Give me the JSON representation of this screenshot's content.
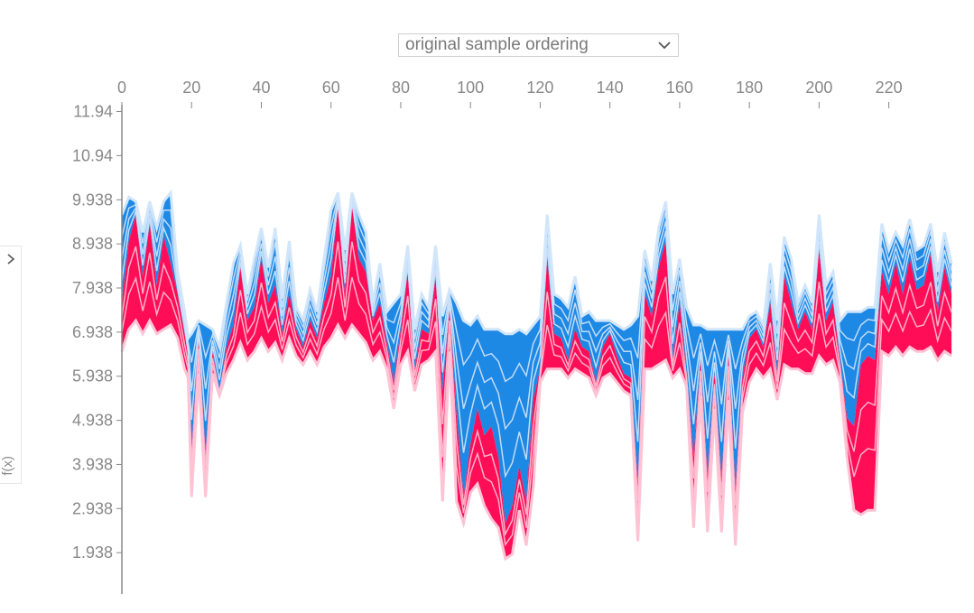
{
  "controls": {
    "ordering_value": "original sample ordering",
    "ordering_icon": "chevron-down-icon",
    "side_toggle_icon": "chevron-right-icon",
    "side_label": "f(x)"
  },
  "colors": {
    "positive": "#ff0d57",
    "negative": "#1e88e5",
    "positive_edge": "#ffc3d5",
    "negative_edge": "#d1e6fa",
    "axis": "#888888"
  },
  "chart_data": {
    "type": "area",
    "title": "",
    "xlabel": "",
    "ylabel": "f(x)",
    "xlim": [
      0,
      239
    ],
    "ylim": [
      1.0,
      12.4
    ],
    "x_ticks": [
      0,
      20,
      40,
      60,
      80,
      100,
      120,
      140,
      160,
      180,
      200,
      220
    ],
    "y_ticks": [
      1.938,
      2.938,
      3.938,
      4.938,
      5.938,
      6.938,
      7.938,
      8.938,
      9.938,
      10.94,
      11.94
    ],
    "y_tick_labels": [
      "1.938",
      "2.938",
      "3.938",
      "4.938",
      "5.938",
      "6.938",
      "7.938",
      "8.938",
      "9.938",
      "10.94",
      "11.94"
    ],
    "grid": false,
    "legend": "none",
    "samples": {
      "x": [
        0,
        2,
        4,
        6,
        8,
        10,
        12,
        14,
        16,
        18,
        19,
        20,
        22,
        24,
        26,
        28,
        30,
        32,
        34,
        36,
        38,
        40,
        42,
        44,
        46,
        48,
        50,
        52,
        54,
        56,
        58,
        60,
        62,
        64,
        66,
        68,
        70,
        72,
        74,
        76,
        78,
        80,
        82,
        84,
        86,
        88,
        90,
        92,
        94,
        96,
        98,
        100,
        102,
        104,
        106,
        108,
        110,
        112,
        114,
        116,
        118,
        120,
        122,
        124,
        126,
        128,
        130,
        132,
        134,
        136,
        138,
        140,
        142,
        144,
        146,
        148,
        150,
        152,
        154,
        156,
        158,
        160,
        162,
        164,
        166,
        168,
        170,
        172,
        174,
        176,
        178,
        180,
        182,
        184,
        186,
        188,
        190,
        192,
        194,
        196,
        198,
        200,
        202,
        204,
        206,
        208,
        210,
        212,
        214,
        216,
        218,
        220,
        222,
        224,
        226,
        228,
        230,
        232,
        234,
        236,
        238
      ],
      "f": [
        7.6,
        9.0,
        9.6,
        8.2,
        9.4,
        8.0,
        9.1,
        8.5,
        7.8,
        6.9,
        6.4,
        4.3,
        6.8,
        4.2,
        6.5,
        5.6,
        6.6,
        7.1,
        8.4,
        7.2,
        7.5,
        8.6,
        7.6,
        8.0,
        6.9,
        7.8,
        7.0,
        6.6,
        7.2,
        6.8,
        7.6,
        8.2,
        9.8,
        7.8,
        9.8,
        8.6,
        8.3,
        7.2,
        7.6,
        6.7,
        5.8,
        7.0,
        8.3,
        6.1,
        7.0,
        6.9,
        8.2,
        5.6,
        7.5,
        5.1,
        3.2,
        4.4,
        5.2,
        4.6,
        4.8,
        4.1,
        2.6,
        3.0,
        3.9,
        3.1,
        5.4,
        6.1,
        8.6,
        6.9,
        6.8,
        6.3,
        7.0,
        6.6,
        6.5,
        5.8,
        6.6,
        6.9,
        6.4,
        6.0,
        5.9,
        3.5,
        7.8,
        7.3,
        8.4,
        9.0,
        6.3,
        7.6,
        6.0,
        4.1,
        6.3,
        3.7,
        6.0,
        3.6,
        6.5,
        3.4,
        5.9,
        6.8,
        7.0,
        6.6,
        7.6,
        6.0,
        8.2,
        7.6,
        7.0,
        7.4,
        7.0,
        8.8,
        7.2,
        7.6,
        6.3,
        5.0,
        4.8,
        6.2,
        6.4,
        6.3,
        8.3,
        7.8,
        8.5,
        7.8,
        8.6,
        7.9,
        8.0,
        8.7,
        7.4,
        8.4,
        7.8
      ],
      "upper": [
        9.6,
        10.0,
        9.9,
        9.2,
        9.9,
        9.3,
        9.9,
        10.1,
        8.3,
        7.4,
        6.8,
        6.9,
        7.2,
        7.1,
        7.0,
        6.6,
        7.6,
        8.5,
        8.9,
        7.8,
        8.6,
        9.3,
        8.4,
        9.3,
        7.7,
        9.0,
        7.5,
        7.2,
        7.9,
        7.4,
        8.6,
        9.7,
        10.1,
        8.8,
        10.1,
        9.6,
        9.2,
        7.6,
        8.5,
        7.4,
        7.6,
        7.8,
        8.9,
        7.0,
        7.8,
        7.5,
        8.9,
        7.3,
        7.9,
        7.6,
        7.2,
        7.1,
        7.3,
        7.0,
        7.0,
        7.0,
        6.9,
        6.9,
        7.0,
        6.9,
        7.1,
        7.3,
        9.6,
        7.8,
        7.7,
        7.5,
        8.2,
        7.3,
        7.4,
        7.2,
        7.2,
        7.2,
        7.1,
        7.0,
        7.1,
        7.3,
        8.8,
        8.1,
        9.3,
        9.9,
        7.8,
        8.6,
        7.5,
        7.1,
        7.1,
        7.0,
        7.0,
        7.0,
        7.0,
        7.0,
        7.0,
        7.3,
        7.4,
        7.1,
        8.5,
        7.2,
        9.1,
        8.6,
        7.6,
        8.0,
        7.6,
        9.6,
        8.0,
        8.3,
        7.2,
        7.4,
        7.4,
        7.4,
        7.5,
        7.5,
        9.4,
        8.8,
        9.2,
        8.9,
        9.5,
        8.8,
        8.9,
        9.4,
        8.3,
        9.2,
        8.5
      ],
      "lower": [
        6.5,
        7.0,
        7.2,
        6.9,
        7.2,
        6.9,
        7.0,
        7.1,
        6.8,
        6.1,
        5.9,
        3.2,
        6.0,
        3.2,
        6.0,
        5.5,
        6.0,
        6.3,
        6.7,
        6.3,
        6.5,
        6.8,
        6.5,
        6.7,
        6.3,
        6.8,
        6.4,
        6.2,
        6.5,
        6.2,
        6.6,
        6.8,
        7.1,
        6.8,
        7.1,
        6.9,
        6.7,
        6.3,
        6.5,
        6.1,
        5.2,
        6.2,
        6.5,
        5.6,
        6.2,
        6.3,
        6.5,
        3.1,
        6.5,
        3.1,
        2.6,
        3.3,
        3.5,
        3.0,
        2.7,
        2.5,
        1.8,
        1.9,
        2.9,
        2.1,
        3.4,
        5.8,
        6.1,
        6.1,
        6.1,
        5.9,
        6.1,
        6.0,
        5.9,
        5.5,
        5.9,
        6.0,
        5.8,
        5.6,
        5.5,
        2.2,
        6.1,
        6.1,
        6.2,
        6.3,
        5.9,
        6.1,
        5.7,
        2.5,
        5.5,
        2.4,
        5.2,
        2.4,
        5.4,
        2.1,
        5.1,
        5.8,
        6.1,
        5.9,
        6.1,
        5.4,
        6.2,
        6.1,
        6.1,
        6.0,
        6.0,
        6.4,
        6.2,
        6.3,
        5.8,
        4.1,
        2.9,
        2.8,
        2.9,
        2.9,
        6.5,
        6.4,
        6.6,
        6.4,
        6.6,
        6.5,
        6.5,
        6.6,
        6.3,
        6.5,
        6.4
      ]
    }
  }
}
